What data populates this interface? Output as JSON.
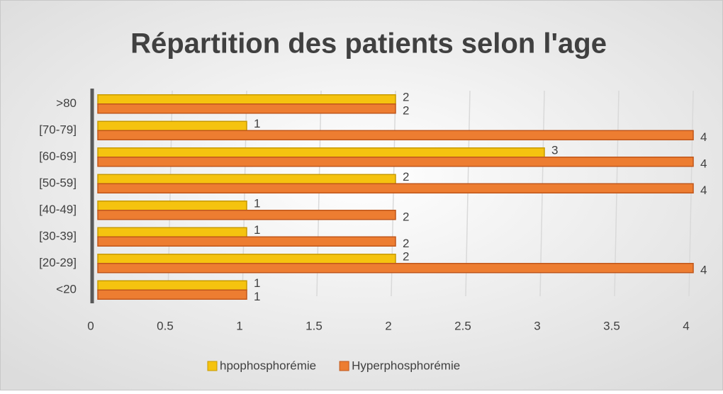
{
  "chart_data": {
    "type": "bar",
    "orientation": "horizontal",
    "title": "Répartition des patients selon l'age",
    "categories": [
      "<20",
      "[20-29]",
      "[30-39]",
      "[40-49]",
      "[50-59]",
      "[60-69]",
      "[70-79]",
      ">80"
    ],
    "series": [
      {
        "name": "hpophosphorémie",
        "color": "#f5c30f",
        "values": [
          1,
          2,
          1,
          1,
          2,
          3,
          1,
          2
        ]
      },
      {
        "name": "Hyperphosphorémie",
        "color": "#ed7d31",
        "values": [
          1,
          4,
          2,
          2,
          4,
          4,
          4,
          2
        ]
      }
    ],
    "xlim": [
      0,
      4
    ],
    "xticks": [
      0,
      0.5,
      1,
      1.5,
      2,
      2.5,
      3,
      3.5,
      4
    ],
    "grid": true,
    "legend": "bottom"
  }
}
